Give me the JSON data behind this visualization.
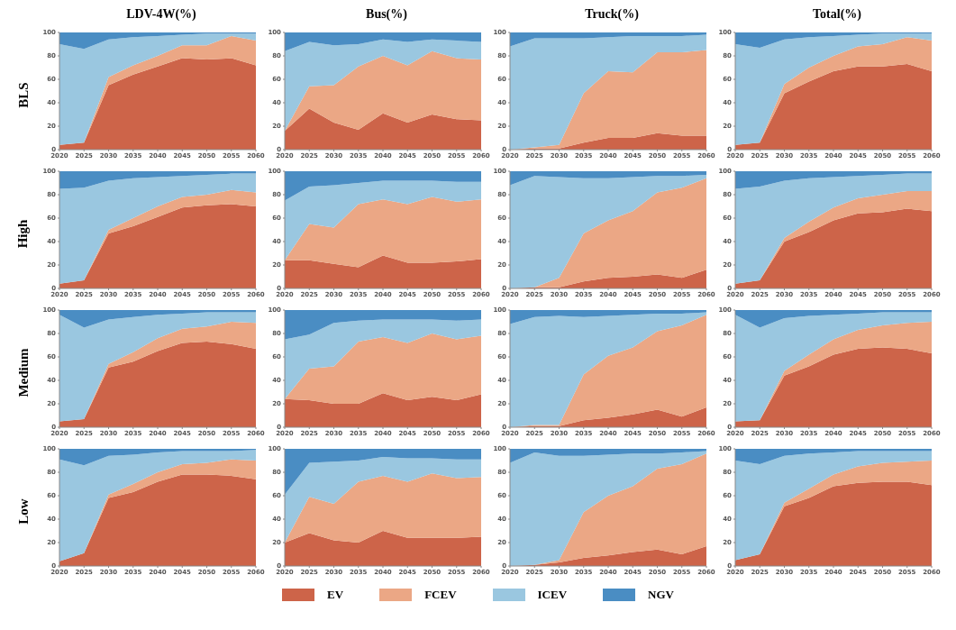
{
  "chart_data": [
    {
      "type": "area",
      "stacked": true,
      "legend": "bottom",
      "title": "LDV-4W(%)",
      "ylabel": "BLS",
      "x": [
        2020,
        2025,
        2030,
        2035,
        2040,
        2045,
        2050,
        2055,
        2060
      ],
      "xlim": [
        2020,
        2060
      ],
      "xticks": [
        2020,
        2025,
        2030,
        2035,
        2040,
        2045,
        2050,
        2055,
        2060
      ],
      "ylim": [
        0,
        100
      ],
      "yticks": [
        0,
        20,
        40,
        60,
        80,
        100
      ],
      "series": [
        {
          "name": "EV",
          "color": "#cd6449",
          "values": [
            4,
            6,
            55,
            64,
            71,
            78,
            77,
            78,
            72
          ]
        },
        {
          "name": "FCEV",
          "color": "#eba785",
          "values": [
            0,
            0,
            7,
            8,
            9,
            11,
            12,
            19,
            21
          ]
        },
        {
          "name": "ICEV",
          "color": "#9ac7e0",
          "values": [
            86,
            80,
            32,
            24,
            17,
            9,
            10,
            2,
            6
          ]
        },
        {
          "name": "NGV",
          "color": "#4a8dc3",
          "values": [
            10,
            14,
            6,
            4,
            3,
            2,
            1,
            1,
            1
          ]
        }
      ]
    },
    {
      "type": "area",
      "stacked": true,
      "title": "Bus(%)",
      "x": [
        2020,
        2025,
        2030,
        2035,
        2040,
        2045,
        2050,
        2055,
        2060
      ],
      "xlim": [
        2020,
        2060
      ],
      "xticks": [
        2020,
        2025,
        2030,
        2035,
        2040,
        2045,
        2050,
        2055,
        2060
      ],
      "ylim": [
        0,
        100
      ],
      "yticks": [
        0,
        20,
        40,
        60,
        80,
        100
      ],
      "series": [
        {
          "color": "#cd6449",
          "values": [
            16,
            35,
            23,
            17,
            31,
            23,
            30,
            26,
            25
          ]
        },
        {
          "color": "#eba785",
          "values": [
            0,
            19,
            32,
            54,
            49,
            49,
            54,
            52,
            52
          ]
        },
        {
          "color": "#9ac7e0",
          "values": [
            68,
            38,
            34,
            19,
            14,
            20,
            10,
            15,
            15
          ]
        },
        {
          "color": "#4a8dc3",
          "values": [
            16,
            8,
            11,
            10,
            6,
            8,
            6,
            7,
            8
          ]
        }
      ]
    },
    {
      "type": "area",
      "stacked": true,
      "title": "Truck(%)",
      "x": [
        2020,
        2025,
        2030,
        2035,
        2040,
        2045,
        2050,
        2055,
        2060
      ],
      "xlim": [
        2020,
        2060
      ],
      "xticks": [
        2020,
        2025,
        2030,
        2035,
        2040,
        2045,
        2050,
        2055,
        2060
      ],
      "ylim": [
        0,
        100
      ],
      "yticks": [
        0,
        20,
        40,
        60,
        80,
        100
      ],
      "series": [
        {
          "color": "#cd6449",
          "values": [
            0,
            1,
            1,
            6,
            10,
            10,
            14,
            12,
            12
          ]
        },
        {
          "color": "#eba785",
          "values": [
            0,
            1,
            3,
            42,
            57,
            56,
            69,
            71,
            73
          ]
        },
        {
          "color": "#9ac7e0",
          "values": [
            88,
            93,
            91,
            47,
            29,
            31,
            14,
            14,
            13
          ]
        },
        {
          "color": "#4a8dc3",
          "values": [
            12,
            5,
            5,
            5,
            4,
            3,
            3,
            3,
            2
          ]
        }
      ]
    },
    {
      "type": "area",
      "stacked": true,
      "title": "Total(%)",
      "x": [
        2020,
        2025,
        2030,
        2035,
        2040,
        2045,
        2050,
        2055,
        2060
      ],
      "xlim": [
        2020,
        2060
      ],
      "xticks": [
        2020,
        2025,
        2030,
        2035,
        2040,
        2045,
        2050,
        2055,
        2060
      ],
      "ylim": [
        0,
        100
      ],
      "yticks": [
        0,
        20,
        40,
        60,
        80,
        100
      ],
      "series": [
        {
          "color": "#cd6449",
          "values": [
            4,
            6,
            48,
            58,
            67,
            71,
            71,
            73,
            67
          ]
        },
        {
          "color": "#eba785",
          "values": [
            0,
            0,
            8,
            12,
            13,
            17,
            19,
            23,
            26
          ]
        },
        {
          "color": "#9ac7e0",
          "values": [
            86,
            81,
            38,
            26,
            17,
            10,
            9,
            3,
            6
          ]
        },
        {
          "color": "#4a8dc3",
          "values": [
            10,
            13,
            6,
            4,
            3,
            2,
            1,
            1,
            1
          ]
        }
      ]
    },
    {
      "type": "area",
      "stacked": true,
      "ylabel": "High",
      "x": [
        2020,
        2025,
        2030,
        2035,
        2040,
        2045,
        2050,
        2055,
        2060
      ],
      "xlim": [
        2020,
        2060
      ],
      "xticks": [
        2020,
        2025,
        2030,
        2035,
        2040,
        2045,
        2050,
        2055,
        2060
      ],
      "ylim": [
        0,
        100
      ],
      "yticks": [
        0,
        20,
        40,
        60,
        80,
        100
      ],
      "series": [
        {
          "color": "#cd6449",
          "values": [
            4,
            7,
            47,
            53,
            61,
            69,
            71,
            72,
            70
          ]
        },
        {
          "color": "#eba785",
          "values": [
            0,
            0,
            3,
            7,
            9,
            9,
            9,
            12,
            12
          ]
        },
        {
          "color": "#9ac7e0",
          "values": [
            81,
            79,
            42,
            34,
            25,
            18,
            17,
            14,
            16
          ]
        },
        {
          "color": "#4a8dc3",
          "values": [
            15,
            14,
            8,
            6,
            5,
            4,
            3,
            2,
            2
          ]
        }
      ]
    },
    {
      "type": "area",
      "stacked": true,
      "x": [
        2020,
        2025,
        2030,
        2035,
        2040,
        2045,
        2050,
        2055,
        2060
      ],
      "xlim": [
        2020,
        2060
      ],
      "xticks": [
        2020,
        2025,
        2030,
        2035,
        2040,
        2045,
        2050,
        2055,
        2060
      ],
      "ylim": [
        0,
        100
      ],
      "yticks": [
        0,
        20,
        40,
        60,
        80,
        100
      ],
      "series": [
        {
          "color": "#cd6449",
          "values": [
            24,
            24,
            21,
            18,
            28,
            22,
            22,
            23,
            25
          ]
        },
        {
          "color": "#eba785",
          "values": [
            0,
            31,
            31,
            54,
            48,
            50,
            56,
            51,
            51
          ]
        },
        {
          "color": "#9ac7e0",
          "values": [
            51,
            32,
            36,
            18,
            16,
            20,
            14,
            17,
            15
          ]
        },
        {
          "color": "#4a8dc3",
          "values": [
            25,
            13,
            12,
            10,
            8,
            8,
            8,
            9,
            9
          ]
        }
      ]
    },
    {
      "type": "area",
      "stacked": true,
      "x": [
        2020,
        2025,
        2030,
        2035,
        2040,
        2045,
        2050,
        2055,
        2060
      ],
      "xlim": [
        2020,
        2060
      ],
      "xticks": [
        2020,
        2025,
        2030,
        2035,
        2040,
        2045,
        2050,
        2055,
        2060
      ],
      "ylim": [
        0,
        100
      ],
      "yticks": [
        0,
        20,
        40,
        60,
        80,
        100
      ],
      "series": [
        {
          "color": "#cd6449",
          "values": [
            0,
            1,
            1,
            6,
            9,
            10,
            12,
            9,
            16
          ]
        },
        {
          "color": "#eba785",
          "values": [
            0,
            0,
            8,
            41,
            49,
            56,
            70,
            77,
            78
          ]
        },
        {
          "color": "#9ac7e0",
          "values": [
            88,
            95,
            86,
            47,
            36,
            29,
            14,
            10,
            3
          ]
        },
        {
          "color": "#4a8dc3",
          "values": [
            12,
            4,
            5,
            6,
            6,
            5,
            4,
            4,
            3
          ]
        }
      ]
    },
    {
      "type": "area",
      "stacked": true,
      "x": [
        2020,
        2025,
        2030,
        2035,
        2040,
        2045,
        2050,
        2055,
        2060
      ],
      "xlim": [
        2020,
        2060
      ],
      "xticks": [
        2020,
        2025,
        2030,
        2035,
        2040,
        2045,
        2050,
        2055,
        2060
      ],
      "ylim": [
        0,
        100
      ],
      "yticks": [
        0,
        20,
        40,
        60,
        80,
        100
      ],
      "series": [
        {
          "color": "#cd6449",
          "values": [
            4,
            7,
            40,
            48,
            58,
            64,
            65,
            68,
            66
          ]
        },
        {
          "color": "#eba785",
          "values": [
            0,
            0,
            3,
            9,
            11,
            13,
            15,
            15,
            17
          ]
        },
        {
          "color": "#9ac7e0",
          "values": [
            81,
            80,
            49,
            37,
            26,
            19,
            17,
            15,
            15
          ]
        },
        {
          "color": "#4a8dc3",
          "values": [
            15,
            13,
            8,
            6,
            5,
            4,
            3,
            2,
            2
          ]
        }
      ]
    },
    {
      "type": "area",
      "stacked": true,
      "ylabel": "Medium",
      "x": [
        2020,
        2025,
        2030,
        2035,
        2040,
        2045,
        2050,
        2055,
        2060
      ],
      "xlim": [
        2020,
        2060
      ],
      "xticks": [
        2020,
        2025,
        2030,
        2035,
        2040,
        2045,
        2050,
        2055,
        2060
      ],
      "ylim": [
        0,
        100
      ],
      "yticks": [
        0,
        20,
        40,
        60,
        80,
        100
      ],
      "series": [
        {
          "color": "#cd6449",
          "values": [
            5,
            7,
            51,
            56,
            65,
            72,
            73,
            71,
            67
          ]
        },
        {
          "color": "#eba785",
          "values": [
            0,
            0,
            3,
            8,
            11,
            12,
            13,
            19,
            22
          ]
        },
        {
          "color": "#9ac7e0",
          "values": [
            91,
            78,
            38,
            30,
            20,
            13,
            12,
            8,
            9
          ]
        },
        {
          "color": "#4a8dc3",
          "values": [
            4,
            15,
            8,
            6,
            4,
            3,
            2,
            2,
            2
          ]
        }
      ]
    },
    {
      "type": "area",
      "stacked": true,
      "x": [
        2020,
        2025,
        2030,
        2035,
        2040,
        2045,
        2050,
        2055,
        2060
      ],
      "xlim": [
        2020,
        2060
      ],
      "xticks": [
        2020,
        2025,
        2030,
        2035,
        2040,
        2045,
        2050,
        2055,
        2060
      ],
      "ylim": [
        0,
        100
      ],
      "yticks": [
        0,
        20,
        40,
        60,
        80,
        100
      ],
      "series": [
        {
          "color": "#cd6449",
          "values": [
            24,
            23,
            20,
            20,
            29,
            23,
            26,
            23,
            28
          ]
        },
        {
          "color": "#eba785",
          "values": [
            0,
            27,
            32,
            53,
            48,
            49,
            54,
            52,
            50
          ]
        },
        {
          "color": "#9ac7e0",
          "values": [
            51,
            29,
            37,
            18,
            15,
            20,
            12,
            16,
            14
          ]
        },
        {
          "color": "#4a8dc3",
          "values": [
            25,
            21,
            11,
            9,
            8,
            8,
            8,
            9,
            8
          ]
        }
      ]
    },
    {
      "type": "area",
      "stacked": true,
      "x": [
        2020,
        2025,
        2030,
        2035,
        2040,
        2045,
        2050,
        2055,
        2060
      ],
      "xlim": [
        2020,
        2060
      ],
      "xticks": [
        2020,
        2025,
        2030,
        2035,
        2040,
        2045,
        2050,
        2055,
        2060
      ],
      "ylim": [
        0,
        100
      ],
      "yticks": [
        0,
        20,
        40,
        60,
        80,
        100
      ],
      "series": [
        {
          "color": "#cd6449",
          "values": [
            0,
            1,
            1,
            6,
            8,
            11,
            15,
            9,
            17
          ]
        },
        {
          "color": "#eba785",
          "values": [
            0,
            1,
            1,
            39,
            53,
            57,
            67,
            78,
            79
          ]
        },
        {
          "color": "#9ac7e0",
          "values": [
            88,
            92,
            93,
            49,
            34,
            28,
            15,
            10,
            2
          ]
        },
        {
          "color": "#4a8dc3",
          "values": [
            12,
            6,
            5,
            6,
            5,
            4,
            3,
            3,
            2
          ]
        }
      ]
    },
    {
      "type": "area",
      "stacked": true,
      "x": [
        2020,
        2025,
        2030,
        2035,
        2040,
        2045,
        2050,
        2055,
        2060
      ],
      "xlim": [
        2020,
        2060
      ],
      "xticks": [
        2020,
        2025,
        2030,
        2035,
        2040,
        2045,
        2050,
        2055,
        2060
      ],
      "ylim": [
        0,
        100
      ],
      "yticks": [
        0,
        20,
        40,
        60,
        80,
        100
      ],
      "series": [
        {
          "color": "#cd6449",
          "values": [
            5,
            6,
            44,
            52,
            62,
            67,
            68,
            67,
            63
          ]
        },
        {
          "color": "#eba785",
          "values": [
            0,
            0,
            4,
            10,
            13,
            16,
            19,
            22,
            27
          ]
        },
        {
          "color": "#9ac7e0",
          "values": [
            91,
            79,
            45,
            33,
            21,
            14,
            11,
            9,
            8
          ]
        },
        {
          "color": "#4a8dc3",
          "values": [
            4,
            15,
            7,
            5,
            4,
            3,
            2,
            2,
            2
          ]
        }
      ]
    },
    {
      "type": "area",
      "stacked": true,
      "ylabel": "Low",
      "x": [
        2020,
        2025,
        2030,
        2035,
        2040,
        2045,
        2050,
        2055,
        2060
      ],
      "xlim": [
        2020,
        2060
      ],
      "xticks": [
        2020,
        2025,
        2030,
        2035,
        2040,
        2045,
        2050,
        2055,
        2060
      ],
      "ylim": [
        0,
        100
      ],
      "yticks": [
        0,
        20,
        40,
        60,
        80,
        100
      ],
      "series": [
        {
          "color": "#cd6449",
          "values": [
            4,
            11,
            58,
            63,
            72,
            78,
            78,
            77,
            74
          ]
        },
        {
          "color": "#eba785",
          "values": [
            0,
            0,
            3,
            7,
            8,
            9,
            10,
            14,
            16
          ]
        },
        {
          "color": "#9ac7e0",
          "values": [
            87,
            75,
            33,
            25,
            17,
            11,
            10,
            7,
            9
          ]
        },
        {
          "color": "#4a8dc3",
          "values": [
            9,
            14,
            6,
            5,
            3,
            2,
            2,
            2,
            1
          ]
        }
      ]
    },
    {
      "type": "area",
      "stacked": true,
      "x": [
        2020,
        2025,
        2030,
        2035,
        2040,
        2045,
        2050,
        2055,
        2060
      ],
      "xlim": [
        2020,
        2060
      ],
      "xticks": [
        2020,
        2025,
        2030,
        2035,
        2040,
        2045,
        2050,
        2055,
        2060
      ],
      "ylim": [
        0,
        100
      ],
      "yticks": [
        0,
        20,
        40,
        60,
        80,
        100
      ],
      "series": [
        {
          "color": "#cd6449",
          "values": [
            20,
            28,
            22,
            20,
            30,
            24,
            24,
            24,
            25
          ]
        },
        {
          "color": "#eba785",
          "values": [
            0,
            31,
            31,
            52,
            47,
            48,
            55,
            51,
            51
          ]
        },
        {
          "color": "#9ac7e0",
          "values": [
            41,
            29,
            36,
            18,
            16,
            20,
            13,
            16,
            15
          ]
        },
        {
          "color": "#4a8dc3",
          "values": [
            39,
            12,
            11,
            10,
            7,
            8,
            8,
            9,
            9
          ]
        }
      ]
    },
    {
      "type": "area",
      "stacked": true,
      "x": [
        2020,
        2025,
        2030,
        2035,
        2040,
        2045,
        2050,
        2055,
        2060
      ],
      "xlim": [
        2020,
        2060
      ],
      "xticks": [
        2020,
        2025,
        2030,
        2035,
        2040,
        2045,
        2050,
        2055,
        2060
      ],
      "ylim": [
        0,
        100
      ],
      "yticks": [
        0,
        20,
        40,
        60,
        80,
        100
      ],
      "series": [
        {
          "color": "#cd6449",
          "values": [
            0,
            1,
            3,
            7,
            9,
            12,
            14,
            10,
            17
          ]
        },
        {
          "color": "#eba785",
          "values": [
            0,
            0,
            2,
            39,
            51,
            56,
            69,
            77,
            79
          ]
        },
        {
          "color": "#9ac7e0",
          "values": [
            88,
            96,
            89,
            48,
            35,
            28,
            13,
            10,
            2
          ]
        },
        {
          "color": "#4a8dc3",
          "values": [
            12,
            3,
            6,
            6,
            5,
            4,
            4,
            3,
            2
          ]
        }
      ]
    },
    {
      "type": "area",
      "stacked": true,
      "x": [
        2020,
        2025,
        2030,
        2035,
        2040,
        2045,
        2050,
        2055,
        2060
      ],
      "xlim": [
        2020,
        2060
      ],
      "xticks": [
        2020,
        2025,
        2030,
        2035,
        2040,
        2045,
        2050,
        2055,
        2060
      ],
      "ylim": [
        0,
        100
      ],
      "yticks": [
        0,
        20,
        40,
        60,
        80,
        100
      ],
      "series": [
        {
          "color": "#cd6449",
          "values": [
            5,
            10,
            51,
            58,
            68,
            71,
            72,
            72,
            69
          ]
        },
        {
          "color": "#eba785",
          "values": [
            0,
            0,
            3,
            8,
            10,
            14,
            16,
            17,
            21
          ]
        },
        {
          "color": "#9ac7e0",
          "values": [
            85,
            77,
            40,
            30,
            19,
            13,
            10,
            9,
            8
          ]
        },
        {
          "color": "#4a8dc3",
          "values": [
            10,
            13,
            6,
            4,
            3,
            2,
            2,
            2,
            2
          ]
        }
      ]
    }
  ]
}
